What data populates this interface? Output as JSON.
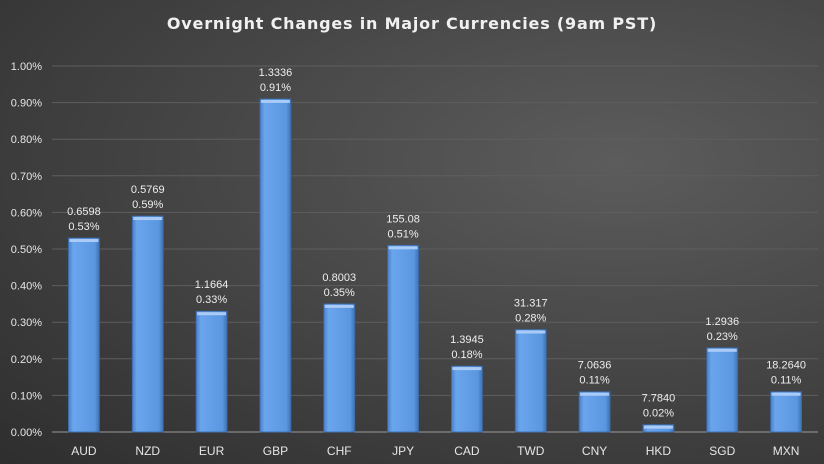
{
  "chart_data": {
    "type": "bar",
    "title": "Overnight Changes in Major Currencies (9am PST)",
    "categories": [
      "AUD",
      "NZD",
      "EUR",
      "GBP",
      "CHF",
      "JPY",
      "CAD",
      "TWD",
      "CNY",
      "HKD",
      "SGD",
      "MXN"
    ],
    "values": [
      0.53,
      0.59,
      0.33,
      0.91,
      0.35,
      0.51,
      0.18,
      0.28,
      0.11,
      0.02,
      0.23,
      0.11
    ],
    "value_labels": [
      "0.53%",
      "0.59%",
      "0.33%",
      "0.91%",
      "0.35%",
      "0.51%",
      "0.18%",
      "0.28%",
      "0.11%",
      "0.02%",
      "0.23%",
      "0.11%"
    ],
    "rate_labels": [
      "0.6598",
      "0.5769",
      "1.1664",
      "1.3336",
      "0.8003",
      "155.08",
      "1.3945",
      "31.317",
      "7.0636",
      "7.7840",
      "1.2936",
      "18.2640"
    ],
    "yticks": [
      "0.00%",
      "0.10%",
      "0.20%",
      "0.30%",
      "0.40%",
      "0.50%",
      "0.60%",
      "0.70%",
      "0.80%",
      "0.90%",
      "1.00%"
    ],
    "ylim": [
      0,
      1.0
    ],
    "xlabel": "",
    "ylabel": "",
    "grid": true,
    "bar_color": "#5b97e0"
  }
}
